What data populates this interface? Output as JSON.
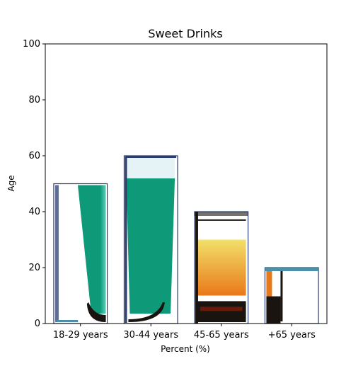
{
  "chart_data": {
    "type": "bar",
    "title": "Sweet Drinks",
    "xlabel": "Percent (%)",
    "ylabel": "Age",
    "categories": [
      "18-29 years",
      "30-44 years",
      "45-65 years",
      "+65 years"
    ],
    "values": [
      50,
      60,
      40,
      20
    ],
    "ylim": [
      0,
      100
    ],
    "yticks": [
      "0",
      "20",
      "40",
      "60",
      "80",
      "100"
    ],
    "grid": false,
    "bar_style": [
      "green-glass",
      "tall-green-glass",
      "amber-tumbler",
      "orange-shot"
    ]
  },
  "colors": {
    "green": "#0e9a78",
    "green_light": "#5fd0ba",
    "amber": "#e8a41a",
    "amber_light": "#f2e06a",
    "orange": "#e9781a",
    "dark": "#1a1410",
    "glass_edge": "#2b3c6e",
    "glass_rim": "#4d8fa8"
  }
}
